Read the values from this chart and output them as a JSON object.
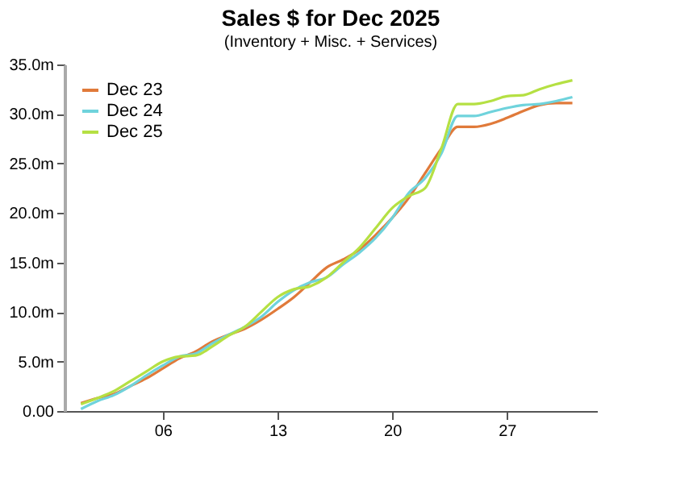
{
  "chart_data": {
    "type": "line",
    "title": "Sales $ for Dec 2025",
    "subtitle": "(Inventory + Misc. + Services)",
    "x": [
      1,
      2,
      3,
      4,
      5,
      6,
      7,
      8,
      9,
      10,
      11,
      12,
      13,
      14,
      15,
      16,
      17,
      18,
      19,
      20,
      21,
      22,
      23,
      24,
      25,
      26,
      27,
      28,
      29,
      30,
      31
    ],
    "series": [
      {
        "name": "Dec 23",
        "color": "#e07a3a",
        "values": [
          0.8,
          1.3,
          1.7,
          2.5,
          3.3,
          4.3,
          5.3,
          6.0,
          7.0,
          7.7,
          8.3,
          9.2,
          10.3,
          11.5,
          13.0,
          14.5,
          15.3,
          16.3,
          17.8,
          19.5,
          21.5,
          24.0,
          26.5,
          28.7,
          28.7,
          29.0,
          29.6,
          30.3,
          30.9,
          31.1,
          31.1
        ]
      },
      {
        "name": "Dec 24",
        "color": "#6fd3dc",
        "values": [
          0.2,
          1.0,
          1.6,
          2.5,
          3.6,
          4.6,
          5.5,
          5.8,
          6.8,
          7.7,
          8.5,
          9.5,
          11.0,
          12.2,
          13.0,
          13.5,
          14.8,
          16.0,
          17.5,
          19.5,
          22.0,
          23.5,
          26.0,
          29.8,
          29.8,
          30.2,
          30.6,
          30.9,
          31.0,
          31.3,
          31.7
        ]
      },
      {
        "name": "Dec 25",
        "color": "#b5e043",
        "values": [
          0.7,
          1.3,
          2.0,
          3.0,
          4.0,
          5.0,
          5.5,
          5.6,
          6.5,
          7.6,
          8.5,
          10.0,
          11.5,
          12.3,
          12.6,
          13.5,
          15.0,
          16.5,
          18.5,
          20.5,
          21.7,
          22.5,
          26.5,
          31.0,
          31.0,
          31.3,
          31.8,
          31.9,
          32.5,
          33.0,
          33.4
        ]
      }
    ],
    "xlim": [
      0,
      32.5
    ],
    "xticks": [
      {
        "value": 6,
        "label": "06"
      },
      13,
      20,
      27
    ],
    "ylim": [
      0,
      35
    ],
    "yticks": [
      {
        "value": 0,
        "label": "0.00"
      },
      {
        "value": 5,
        "label": "5.0m"
      },
      {
        "value": 10,
        "label": "10.0m"
      },
      {
        "value": 15,
        "label": "15.0m"
      },
      {
        "value": 20,
        "label": "20.0m"
      },
      {
        "value": 25,
        "label": "25.0m"
      },
      {
        "value": 30,
        "label": "30.0m"
      },
      {
        "value": 35,
        "label": "35.0m"
      }
    ],
    "grid": false,
    "legend": "top left",
    "marker": "none",
    "line_style": "solid"
  }
}
